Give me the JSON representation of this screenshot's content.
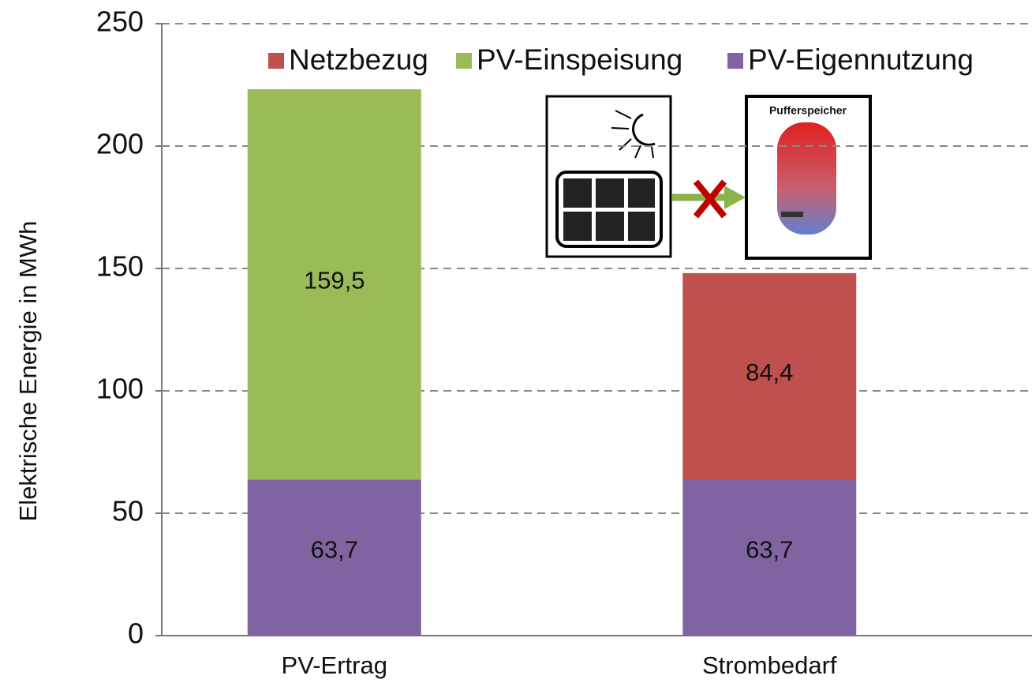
{
  "chart_data": {
    "type": "stacked_bar",
    "y_label": "Elektrische Energie in MWh",
    "categories": [
      "PV-Ertrag",
      "Strombedarf"
    ],
    "series": [
      {
        "name": "PV-Eigennutzung",
        "color": "#8064a2",
        "values": [
          63.7,
          63.7
        ],
        "value_labels": [
          "63,7",
          "63,7"
        ]
      },
      {
        "name": "PV-Einspeisung",
        "color": "#9bbb59",
        "values": [
          159.5,
          null
        ],
        "value_labels": [
          "159,5",
          null
        ]
      },
      {
        "name": "Netzbezug",
        "color": "#c0504d",
        "values": [
          null,
          84.4
        ],
        "value_labels": [
          null,
          "84,4"
        ]
      }
    ],
    "legend_order": [
      "Netzbezug",
      "PV-Einspeisung",
      "PV-Eigennutzung"
    ],
    "ylim": [
      0,
      250
    ],
    "yticks": [
      0,
      50,
      100,
      150,
      200,
      250
    ],
    "grid": true,
    "annotation": "Pufferspeicher"
  }
}
